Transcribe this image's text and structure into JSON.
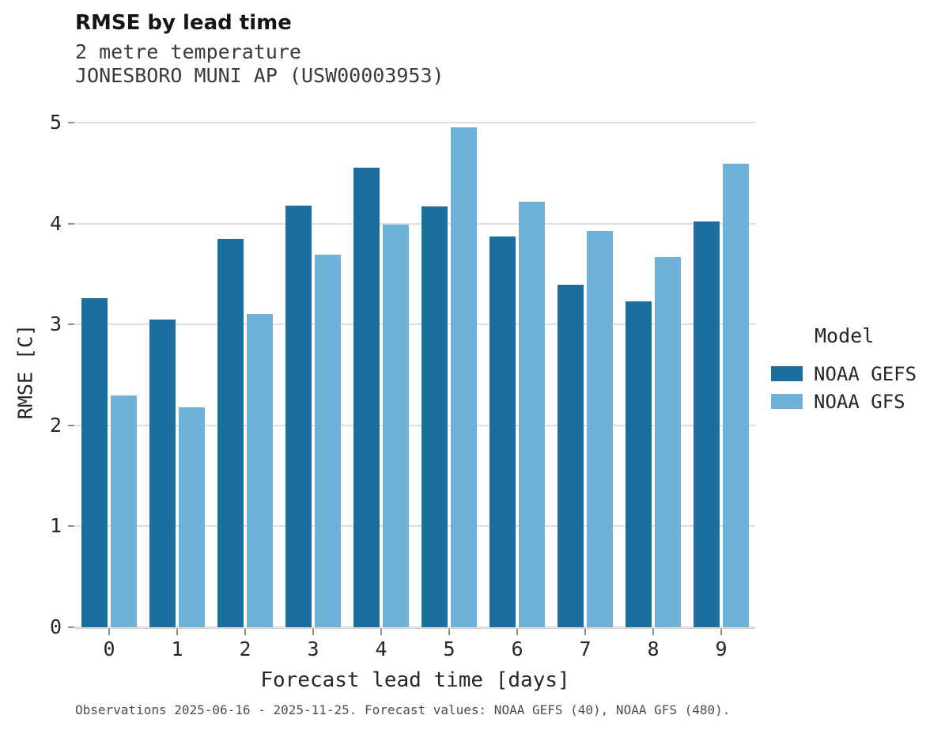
{
  "header": {
    "title": "RMSE by lead time",
    "subtitle_line1": "2 metre temperature",
    "subtitle_line2": "JONESBORO MUNI AP (USW00003953)"
  },
  "chart_data": {
    "type": "bar",
    "title": "RMSE by lead time",
    "subtitle_lines": [
      "2 metre temperature",
      "JONESBORO MUNI AP (USW00003953)"
    ],
    "categories": [
      "0",
      "1",
      "2",
      "3",
      "4",
      "5",
      "6",
      "7",
      "8",
      "9"
    ],
    "series": [
      {
        "name": "NOAA GEFS",
        "color": "#1A6F9E",
        "values": [
          3.26,
          3.05,
          3.85,
          4.18,
          4.55,
          4.17,
          3.87,
          3.39,
          3.23,
          4.02
        ]
      },
      {
        "name": "NOAA GFS",
        "color": "#6FB2D9",
        "values": [
          2.3,
          2.18,
          3.1,
          3.69,
          3.99,
          4.95,
          4.22,
          3.93,
          3.67,
          4.59
        ]
      }
    ],
    "xlabel": "Forecast lead time [days]",
    "ylabel": "RMSE [C]",
    "ylim": [
      0,
      5
    ],
    "yticks": [
      0,
      1,
      2,
      3,
      4,
      5
    ],
    "legend_title": "Model",
    "legend_position": "right",
    "grid": "horizontal"
  },
  "footer": {
    "caption": "Observations 2025-06-16 - 2025-11-25. Forecast values: NOAA GEFS (40), NOAA GFS (480)."
  }
}
